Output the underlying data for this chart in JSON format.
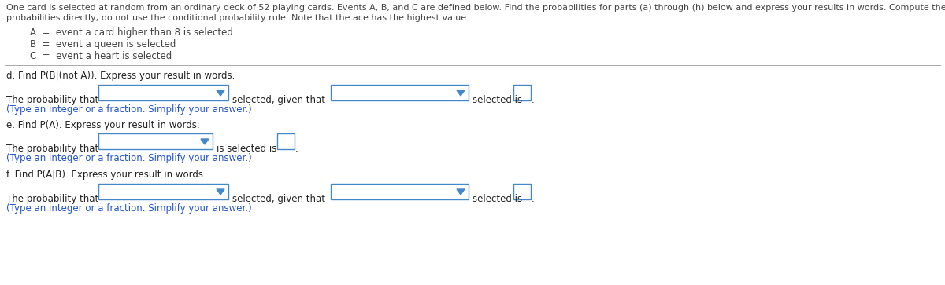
{
  "header_line1": "One card is selected at random from an ordinary deck of 52 playing cards. Events A, B, and C are defined below. Find the probabilities for parts (a) through (h) below and express your results in words. Compute the conditional",
  "header_line2": "probabilities directly; do not use the conditional probability rule. Note that the ace has the highest value.",
  "event_A": "A  =  event a card higher than 8 is selected",
  "event_B": "B  =  event a queen is selected",
  "event_C": "C  =  event a heart is selected",
  "part_d_label": "d. Find P(B|(not A)). Express your result in words.",
  "part_d_pre": "The probability that",
  "part_d_mid": "selected, given that",
  "part_d_post": "selected is",
  "part_d_hint": "(Type an integer or a fraction. Simplify your answer.)",
  "part_e_label": "e. Find P(A). Express your result in words.",
  "part_e_pre": "The probability that",
  "part_e_mid": "is selected is",
  "part_e_hint": "(Type an integer or a fraction. Simplify your answer.)",
  "part_f_label": "f. Find P(A|B). Express your result in words.",
  "part_f_pre": "The probability that",
  "part_f_mid": "selected, given that",
  "part_f_post": "selected is",
  "part_f_hint": "(Type an integer or a fraction. Simplify your answer.)",
  "header_color": "#444444",
  "label_color": "#222222",
  "body_color": "#222222",
  "hint_color": "#2255cc",
  "event_color": "#444444",
  "bg_color": "#ffffff",
  "divider_color": "#aaaaaa",
  "dropdown_color": "#4488cc"
}
